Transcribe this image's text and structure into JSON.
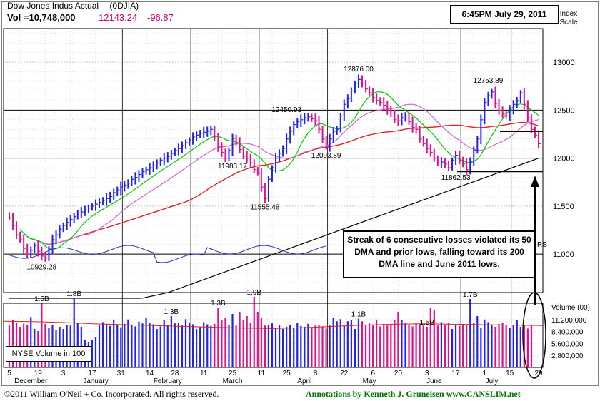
{
  "header": {
    "title": "Dow Jones Indus Actual",
    "symbol": "(0DJIA)",
    "volume": "Vol =10,748,000",
    "price": "12143.24",
    "change": "-96.87",
    "timestamp": "6:45PM July 29, 2011"
  },
  "annotation": "Streak of 6 consecutive losses violated its 50 DMA and prior lows, falling toward its 200 DMA line and June 2011 lows.",
  "volume_box": "NYSE Volume in 100",
  "footer": {
    "copyright": "©2011 William O'Neil + Co. Incorporated. All rights reserved.",
    "credit": "Annotations by Kenneth J. Gruneisen  www.CANSLIM.net"
  },
  "colors": {
    "up_bar": "#2222ee",
    "down_bar": "#dd1188",
    "ma10": "#00cc00",
    "ma21": "#cc66cc",
    "ma50": "#dd2222",
    "ma200": "#000000",
    "rs_line": "#2233bb"
  },
  "chart_data": [
    {
      "type": "line",
      "title": "Dow Jones Indus Actual",
      "ylabel": "Index Scale",
      "y_ticks": [
        "13000",
        "12500",
        "12000",
        "11500",
        "11000"
      ],
      "ylim": [
        10600,
        13350
      ],
      "log_scale": false,
      "month_labels": [
        "December",
        "January",
        "February",
        "March",
        "April",
        "May",
        "June",
        "July"
      ],
      "day_labels": [
        "5",
        "19",
        "3",
        "17",
        "31",
        "14",
        "28",
        "11",
        "25",
        "11",
        "25",
        "8",
        "22",
        "6",
        "20",
        "3",
        "17",
        "1",
        "15",
        "29"
      ],
      "price_labels": [
        {
          "text": "10929.28",
          "value": 10929.28
        },
        {
          "text": "11983.17",
          "value": 11983.17
        },
        {
          "text": "11555.48",
          "value": 11555.48
        },
        {
          "text": "12450.93",
          "value": 12450.93
        },
        {
          "text": "12093.89",
          "value": 12093.89
        },
        {
          "text": "12876.00",
          "value": 12876.0
        },
        {
          "text": "11862.53",
          "value": 11862.53
        },
        {
          "text": "12753.89",
          "value": 12753.89
        }
      ],
      "closes": [
        11380,
        11300,
        11200,
        11150,
        11060,
        11000,
        11040,
        11090,
        11030,
        10980,
        10960,
        11050,
        11150,
        11200,
        11260,
        11300,
        11330,
        11360,
        11390,
        11430,
        11440,
        11460,
        11480,
        11500,
        11520,
        11540,
        11560,
        11580,
        11600,
        11640,
        11670,
        11700,
        11720,
        11740,
        11780,
        11800,
        11830,
        11860,
        11880,
        11900,
        11920,
        11950,
        11980,
        12000,
        12020,
        12050,
        12080,
        12100,
        12130,
        12160,
        12190,
        12220,
        12240,
        12260,
        12270,
        12280,
        12300,
        12210,
        12120,
        12060,
        12000,
        12080,
        12200,
        12180,
        12090,
        12020,
        12000,
        11950,
        11880,
        11850,
        11700,
        11580,
        11780,
        11900,
        12000,
        12050,
        12100,
        12200,
        12280,
        12350,
        12380,
        12400,
        12420,
        12430,
        12410,
        12390,
        12300,
        12200,
        12120,
        12200,
        12280,
        12300,
        12440,
        12560,
        12620,
        12700,
        12780,
        12820,
        12780,
        12720,
        12680,
        12630,
        12600,
        12580,
        12550,
        12500,
        12470,
        12400,
        12390,
        12420,
        12440,
        12380,
        12320,
        12300,
        12200,
        12150,
        12100,
        12060,
        12000,
        11950,
        11960,
        11940,
        11900,
        11980,
        12030,
        11980,
        11940,
        11880,
        11960,
        12080,
        12200,
        12400,
        12580,
        12650,
        12690,
        12570,
        12500,
        12460,
        12440,
        12500,
        12560,
        12600,
        12680,
        12560,
        12420,
        12300,
        12240,
        12150
      ],
      "series": [
        {
          "name": "Price",
          "values": "closes"
        },
        {
          "name": "50 DMA"
        },
        {
          "name": "200 DMA"
        },
        {
          "name": "RS"
        }
      ]
    },
    {
      "type": "bar",
      "title": "NYSE Volume in 100",
      "ylabel": "Volume (00)",
      "y_ticks": [
        "11,200,000",
        "8,400,000",
        "5,600,000",
        "2,800,000"
      ],
      "ylim": [
        0,
        15000000
      ],
      "peak_labels": [
        {
          "text": "1.5B",
          "value": 1.5
        },
        {
          "text": "1.8B",
          "value": 1.8
        },
        {
          "text": "1.3B",
          "value": 1.3
        },
        {
          "text": "1.3B",
          "value": 1.3
        },
        {
          "text": "1.9B",
          "value": 1.9
        },
        {
          "text": "1.1B",
          "value": 1.1
        },
        {
          "text": "1.5B",
          "value": 1.5
        },
        {
          "text": "1.7B",
          "value": 1.7
        }
      ],
      "volumes": [
        10.0,
        11.0,
        10.5,
        9.5,
        10.2,
        10.0,
        11.8,
        9.0,
        8.5,
        15.0,
        10.2,
        9.2,
        10.0,
        8.8,
        9.5,
        9.0,
        10.0,
        9.8,
        16.2,
        10.4,
        9.5,
        6.5,
        6.0,
        6.4,
        7.0,
        10.0,
        10.6,
        10.1,
        9.7,
        11.0,
        10.1,
        9.4,
        10.2,
        11.2,
        10.0,
        9.6,
        10.7,
        10.3,
        11.6,
        10.5,
        10.1,
        9.0,
        9.6,
        11.0,
        10.0,
        12.0,
        10.3,
        10.5,
        9.8,
        11.3,
        10.5,
        10.1,
        9.0,
        9.4,
        10.6,
        10.1,
        9.7,
        10.2,
        14.0,
        11.0,
        11.5,
        10.0,
        12.5,
        9.8,
        13.0,
        11.0,
        12.0,
        10.5,
        16.5,
        13.0,
        11.5,
        9.8,
        10.0,
        10.3,
        9.3,
        10.0,
        9.0,
        9.5,
        10.0,
        9.3,
        10.5,
        9.7,
        9.5,
        10.2,
        9.3,
        9.8,
        10.0,
        9.6,
        9.1,
        9.8,
        11.6,
        10.8,
        11.3,
        10.0,
        10.8,
        11.0,
        9.0,
        11.4,
        10.8,
        10.0,
        10.3,
        9.8,
        11.2,
        9.6,
        10.2,
        9.8,
        10.0,
        11.0,
        13.0,
        11.0,
        10.4,
        10.0,
        9.6,
        10.5,
        10.1,
        9.8,
        9.5,
        14.0,
        13.5,
        9.8,
        10.6,
        10.0,
        10.5,
        9.0,
        10.1,
        9.7,
        10.0,
        9.9,
        16.0,
        10.5,
        12.0,
        9.2,
        11.2,
        10.6,
        10.0,
        9.5,
        10.2,
        10.5,
        10.0,
        9.3,
        10.0,
        11.0,
        9.5,
        9.8,
        9.1,
        10.0
      ],
      "volume_avg": [
        10.8,
        10.7,
        10.5,
        10.2,
        10.0,
        9.8,
        9.6,
        9.4,
        9.2,
        9.1,
        9.3,
        9.6,
        9.9,
        10.1,
        10.2,
        10.1,
        10.0,
        9.9,
        9.8
      ]
    }
  ]
}
